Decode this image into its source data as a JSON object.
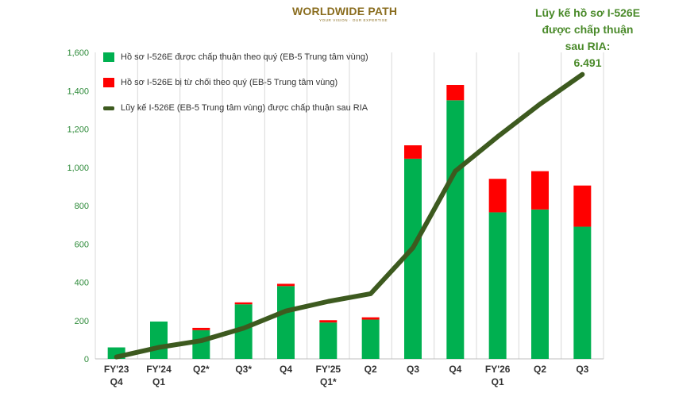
{
  "logo": {
    "text": "WORLDWIDE PATH",
    "tagline": "YOUR VISION · OUR EXPERTISE",
    "brand_color": "#8a6d1f"
  },
  "note": {
    "line1": "Lũy kế hồ sơ I-526E",
    "line2": "được chấp thuận",
    "line3": "sau RIA:",
    "value": "6.491"
  },
  "colors": {
    "approved": "#00b050",
    "denied": "#ff0000",
    "cumulative": "#3d5a1f",
    "note": "#4a8a2a"
  },
  "chart_data": {
    "type": "bar",
    "stacked": true,
    "categories": [
      [
        "FY'23",
        "Q4"
      ],
      [
        "FY'24",
        "Q1"
      ],
      [
        "Q2*"
      ],
      [
        "Q3*"
      ],
      [
        "Q4"
      ],
      [
        "FY'25",
        "Q1*"
      ],
      [
        "Q2"
      ],
      [
        "Q3"
      ],
      [
        "Q4"
      ],
      [
        "FY'26",
        "Q1"
      ],
      [
        "Q2"
      ],
      [
        "Q3"
      ]
    ],
    "series": [
      {
        "name": "Hồ sơ I-526E được chấp thuận theo quý (EB-5 Trung tâm vùng)",
        "kind": "bar",
        "color": "#00b050",
        "values": [
          60,
          195,
          150,
          285,
          380,
          190,
          205,
          1045,
          1350,
          765,
          780,
          690
        ]
      },
      {
        "name": "Hồ sơ I-526E bị từ chối theo quý (EB-5 Trung tâm vùng)",
        "kind": "bar",
        "color": "#ff0000",
        "values": [
          0,
          0,
          12,
          10,
          12,
          12,
          12,
          70,
          80,
          175,
          200,
          215
        ]
      },
      {
        "name": "Lũy kế I-526E (EB-5 Trung tâm vùng) được chấp thuận sau RIA",
        "kind": "line",
        "color": "#3d5a1f",
        "values": [
          10,
          60,
          95,
          160,
          250,
          300,
          340,
          580,
          980,
          1160,
          1330,
          1485
        ]
      }
    ],
    "ylim": [
      0,
      1600
    ],
    "yticks": [
      0,
      200,
      400,
      600,
      800,
      1000,
      1200,
      1400,
      1600
    ],
    "ytick_labels": [
      "0",
      "200",
      "400",
      "600",
      "800",
      "1,000",
      "1,200",
      "1,400",
      "1,600"
    ],
    "grid": "vertical",
    "legend": "top-left",
    "xlabel": "",
    "ylabel": ""
  }
}
